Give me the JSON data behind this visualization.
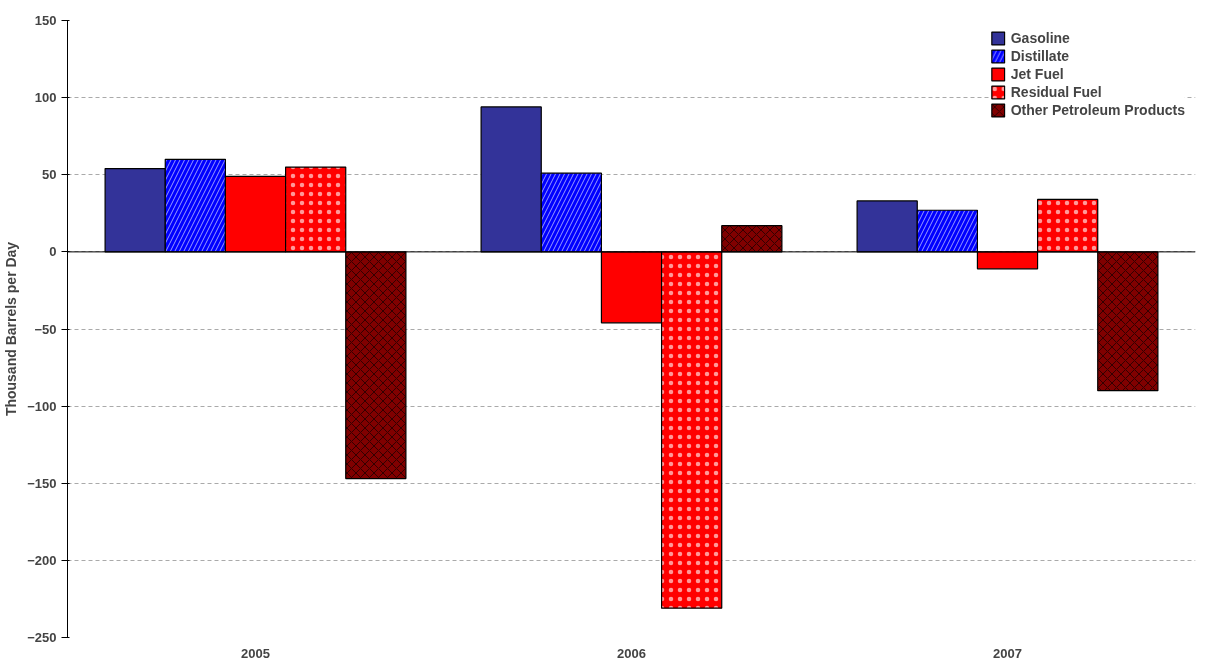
{
  "chart_data": {
    "type": "bar",
    "ylabel": "Thousand Barrels per Day",
    "categories": [
      "2005",
      "2006",
      "2007"
    ],
    "series": [
      {
        "name": "Gasoline",
        "color": "#333399",
        "values": [
          54,
          94,
          33
        ]
      },
      {
        "name": "Distillate",
        "color": "#0000ff",
        "values": [
          60,
          51,
          27
        ]
      },
      {
        "name": "Jet Fuel",
        "color": "#ff0000",
        "values": [
          49,
          -46,
          -11
        ]
      },
      {
        "name": "Residual Fuel",
        "color": "#ff0000",
        "values": [
          55,
          -231,
          34
        ]
      },
      {
        "name": "Other Petroleum Products",
        "color": "#800000",
        "values": [
          -147,
          17,
          -90
        ]
      }
    ],
    "ylim": [
      -250,
      150
    ],
    "yticks": [
      -250,
      -200,
      -150,
      -100,
      -50,
      0,
      50,
      100,
      150
    ],
    "grid": "y",
    "legend": "top right"
  }
}
